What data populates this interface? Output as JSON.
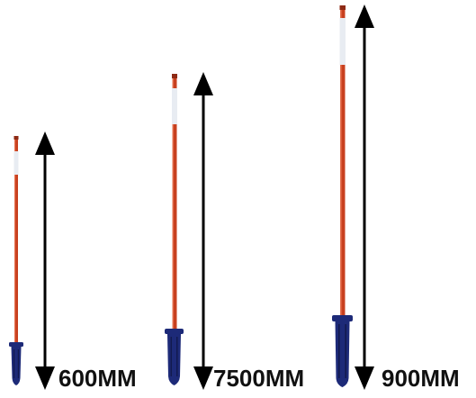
{
  "labels": [
    "600MM",
    "7500MM",
    "900MM"
  ],
  "colors": {
    "shaft": "#c8401f",
    "shaft_highlight": "#e4704e",
    "shaft_shadow": "#8e2a14",
    "handle": "#1d2a78",
    "handle_dark": "#121a4f",
    "sticker": "#e8ecf2",
    "arrow": "#000000",
    "text": "#111111"
  }
}
